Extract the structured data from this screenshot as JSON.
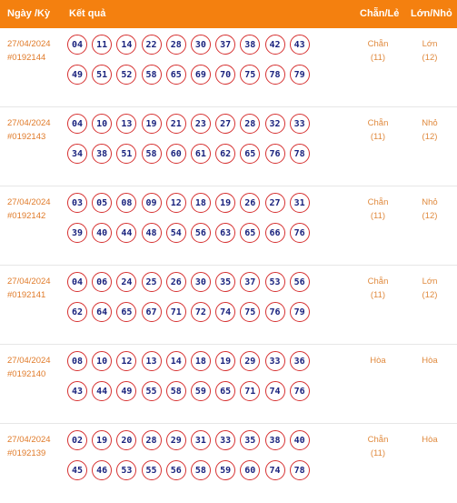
{
  "header": {
    "date": "Ngày /Kỳ",
    "result": "Kết quả",
    "odd_even": "Chẵn/Lẻ",
    "big_small": "Lớn/Nhỏ"
  },
  "rows": [
    {
      "date": "27/04/2024",
      "period": "#0192144",
      "line1": [
        "04",
        "11",
        "14",
        "22",
        "28",
        "30",
        "37",
        "38",
        "42",
        "43"
      ],
      "line2": [
        "49",
        "51",
        "52",
        "58",
        "65",
        "69",
        "70",
        "75",
        "78",
        "79"
      ],
      "odd_even": "Chẵn",
      "odd_even_count": "(11)",
      "big_small": "Lớn",
      "big_small_count": "(12)"
    },
    {
      "date": "27/04/2024",
      "period": "#0192143",
      "line1": [
        "04",
        "10",
        "13",
        "19",
        "21",
        "23",
        "27",
        "28",
        "32",
        "33"
      ],
      "line2": [
        "34",
        "38",
        "51",
        "58",
        "60",
        "61",
        "62",
        "65",
        "76",
        "78"
      ],
      "odd_even": "Chẵn",
      "odd_even_count": "(11)",
      "big_small": "Nhỏ",
      "big_small_count": "(12)"
    },
    {
      "date": "27/04/2024",
      "period": "#0192142",
      "line1": [
        "03",
        "05",
        "08",
        "09",
        "12",
        "18",
        "19",
        "26",
        "27",
        "31"
      ],
      "line2": [
        "39",
        "40",
        "44",
        "48",
        "54",
        "56",
        "63",
        "65",
        "66",
        "76"
      ],
      "odd_even": "Chẵn",
      "odd_even_count": "(11)",
      "big_small": "Nhỏ",
      "big_small_count": "(12)"
    },
    {
      "date": "27/04/2024",
      "period": "#0192141",
      "line1": [
        "04",
        "06",
        "24",
        "25",
        "26",
        "30",
        "35",
        "37",
        "53",
        "56"
      ],
      "line2": [
        "62",
        "64",
        "65",
        "67",
        "71",
        "72",
        "74",
        "75",
        "76",
        "79"
      ],
      "odd_even": "Chẵn",
      "odd_even_count": "(11)",
      "big_small": "Lớn",
      "big_small_count": "(12)"
    },
    {
      "date": "27/04/2024",
      "period": "#0192140",
      "line1": [
        "08",
        "10",
        "12",
        "13",
        "14",
        "18",
        "19",
        "29",
        "33",
        "36"
      ],
      "line2": [
        "43",
        "44",
        "49",
        "55",
        "58",
        "59",
        "65",
        "71",
        "74",
        "76"
      ],
      "odd_even": "Hòa",
      "odd_even_count": "",
      "big_small": "Hòa",
      "big_small_count": ""
    },
    {
      "date": "27/04/2024",
      "period": "#0192139",
      "line1": [
        "02",
        "19",
        "20",
        "28",
        "29",
        "31",
        "33",
        "35",
        "38",
        "40"
      ],
      "line2": [
        "45",
        "46",
        "53",
        "55",
        "56",
        "58",
        "59",
        "60",
        "74",
        "78"
      ],
      "odd_even": "Chẵn",
      "odd_even_count": "(11)",
      "big_small": "Hòa",
      "big_small_count": ""
    }
  ]
}
